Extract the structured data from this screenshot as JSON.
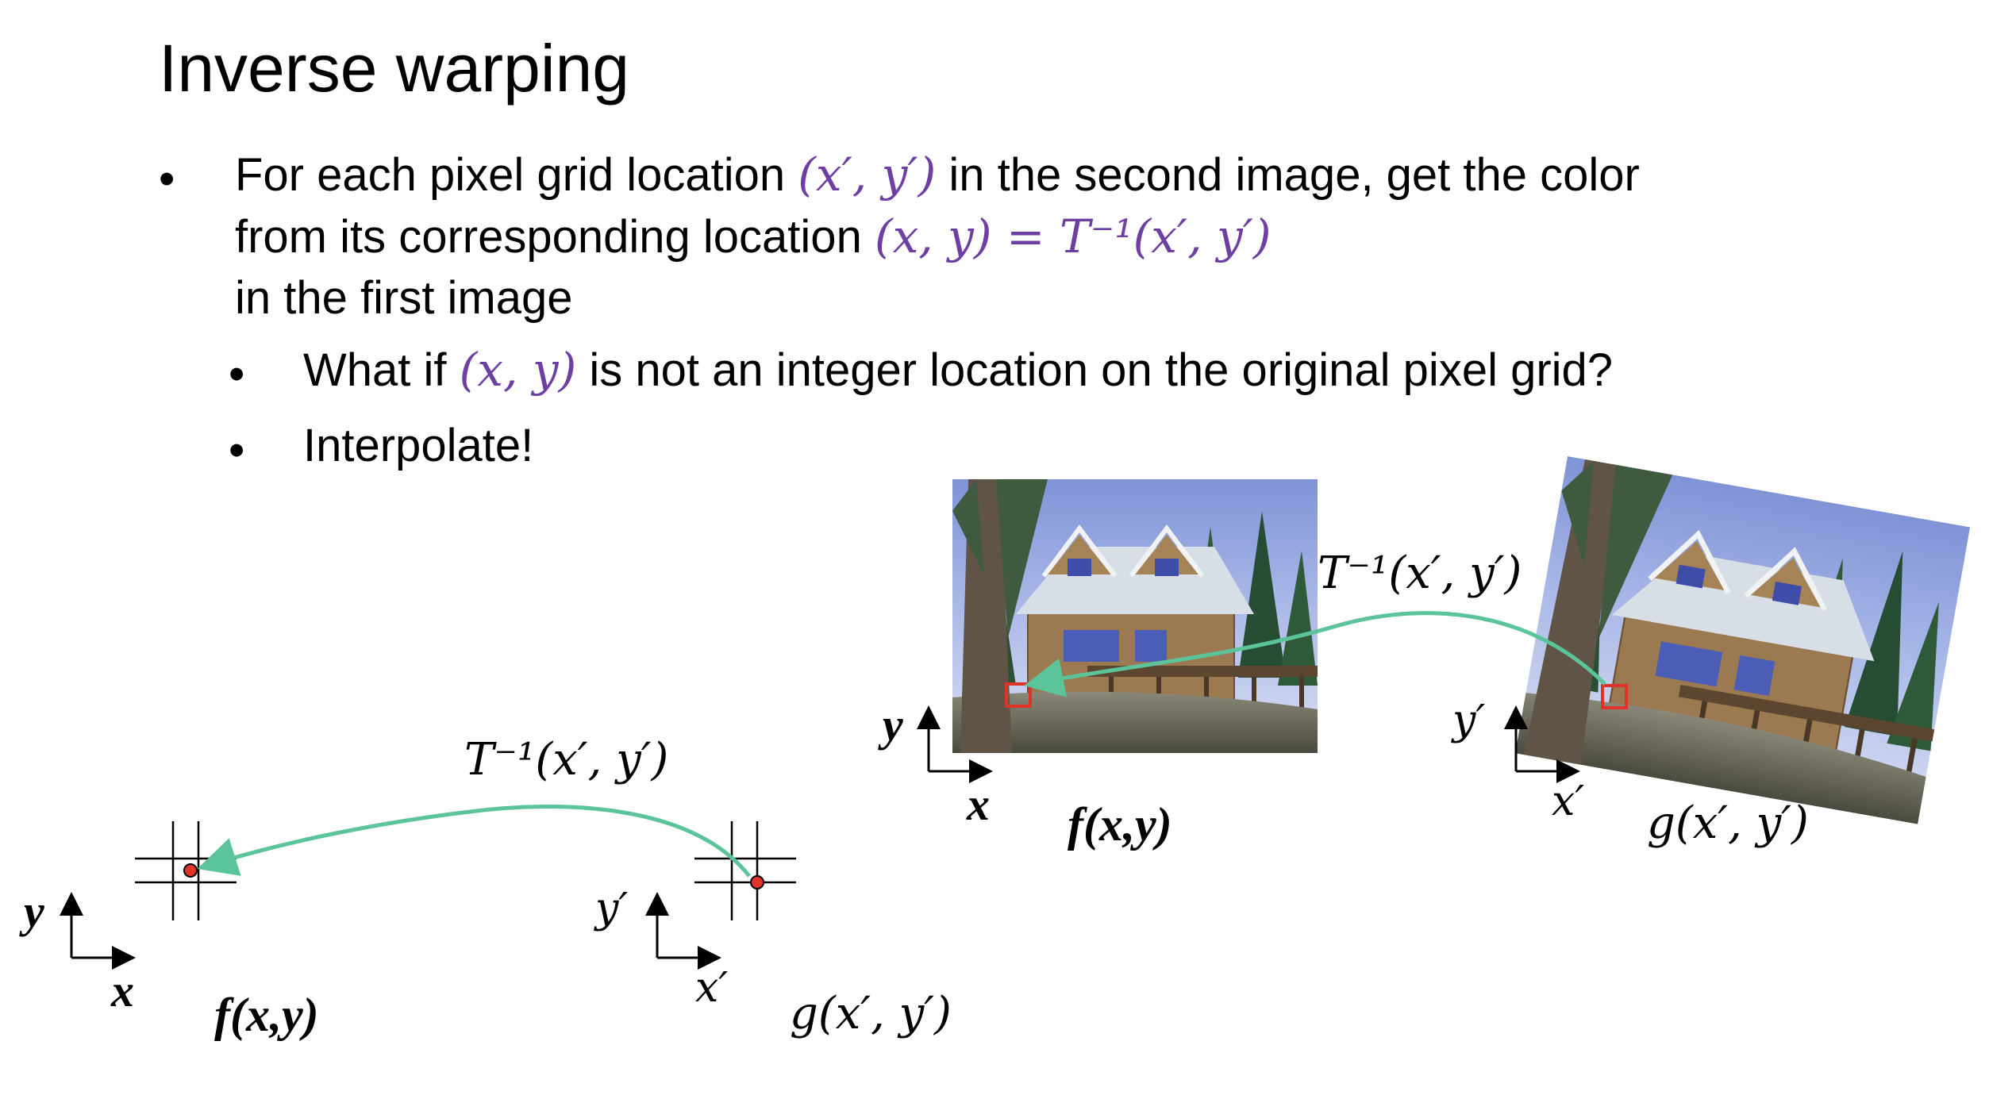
{
  "title": "Inverse warping",
  "bullets": {
    "b1": {
      "text_a": "For each pixel grid location ",
      "math_a": "(x′, y′)",
      "text_b": " in the second image, get the color",
      "text_c": "from its corresponding location ",
      "math_b": "(x, y) = T⁻¹(x′, y′)",
      "text_d": "in the first image"
    },
    "b2": {
      "text_a": "What if ",
      "math_a": "(x, y)",
      "text_b": " is not an integer location on the original pixel grid?"
    },
    "b3": {
      "text": "Interpolate!"
    }
  },
  "diagram_left": {
    "arrow_label": "T⁻¹(x′, y′)",
    "src_axis_y": "y",
    "src_axis_x": "x",
    "src_func": "f(x,y)",
    "dst_axis_y": "y′",
    "dst_axis_x": "x′",
    "dst_func": "g(x′, y′)"
  },
  "diagram_right": {
    "arrow_label": "T⁻¹(x′, y′)",
    "src_axis_y": "y",
    "src_axis_x": "x",
    "src_func": "f(x,y)",
    "dst_axis_y": "y′",
    "dst_axis_x": "x′",
    "dst_func": "g(x′, y′)"
  },
  "colors": {
    "math": "#6e3fa3",
    "arrow": "#5cc49a",
    "marker": "#e0342a"
  }
}
